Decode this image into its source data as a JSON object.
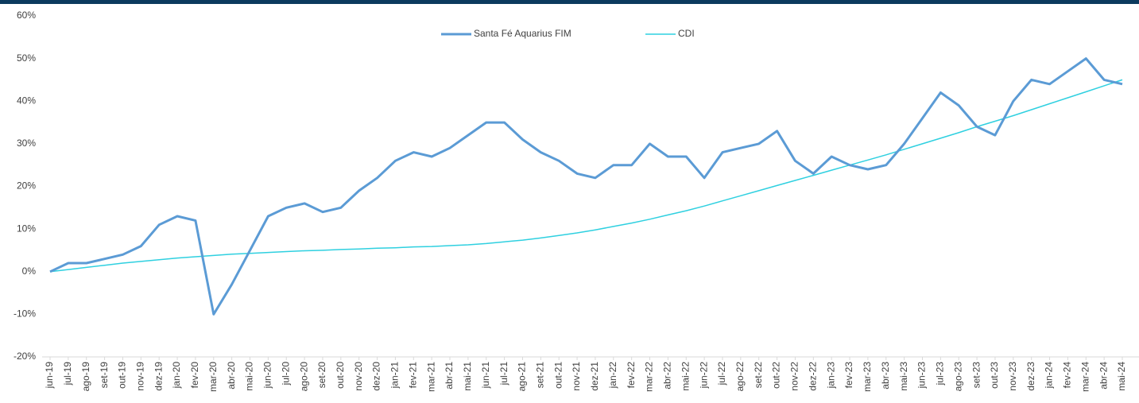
{
  "chart_data": {
    "type": "line",
    "categories": [
      "jun-19",
      "jul-19",
      "ago-19",
      "set-19",
      "out-19",
      "nov-19",
      "dez-19",
      "jan-20",
      "fev-20",
      "mar-20",
      "abr-20",
      "mai-20",
      "jun-20",
      "jul-20",
      "ago-20",
      "set-20",
      "out-20",
      "nov-20",
      "dez-20",
      "jan-21",
      "fev-21",
      "mar-21",
      "abr-21",
      "mai-21",
      "jun-21",
      "jul-21",
      "ago-21",
      "set-21",
      "out-21",
      "nov-21",
      "dez-21",
      "jan-22",
      "fev-22",
      "mar-22",
      "abr-22",
      "mai-22",
      "jun-22",
      "jul-22",
      "ago-22",
      "set-22",
      "out-22",
      "nov-22",
      "dez-22",
      "jan-23",
      "fev-23",
      "mar-23",
      "abr-23",
      "mai-23",
      "jun-23",
      "jul-23",
      "ago-23",
      "set-23",
      "out-23",
      "nov-23",
      "dez-23",
      "jan-24",
      "fev-24",
      "mar-24",
      "abr-24",
      "mai-24"
    ],
    "series": [
      {
        "name": "Santa Fé Aquarius FIM",
        "color": "#5b9bd5",
        "width": 3,
        "values": [
          0,
          2,
          2,
          3,
          4,
          6,
          11,
          13,
          12,
          -10,
          -3,
          5,
          13,
          15,
          16,
          14,
          15,
          19,
          22,
          26,
          28,
          27,
          29,
          32,
          35,
          35,
          31,
          28,
          26,
          23,
          22,
          25,
          25,
          30,
          27,
          27,
          22,
          28,
          29,
          30,
          33,
          26,
          23,
          27,
          25,
          24,
          25,
          30,
          36,
          42,
          39,
          34,
          32,
          40,
          45,
          44,
          47,
          50,
          45,
          44
        ]
      },
      {
        "name": "CDI",
        "color": "#2fd0e0",
        "width": 1.5,
        "values": [
          0,
          0.5,
          1,
          1.5,
          2,
          2.4,
          2.8,
          3.2,
          3.5,
          3.8,
          4.1,
          4.3,
          4.5,
          4.7,
          4.9,
          5.0,
          5.2,
          5.3,
          5.5,
          5.6,
          5.8,
          5.9,
          6.1,
          6.3,
          6.6,
          7.0,
          7.4,
          7.9,
          8.5,
          9.1,
          9.8,
          10.6,
          11.4,
          12.3,
          13.3,
          14.3,
          15.4,
          16.6,
          17.8,
          19.0,
          20.2,
          21.4,
          22.6,
          23.8,
          25.0,
          26.2,
          27.4,
          28.7,
          30.0,
          31.3,
          32.6,
          34.0,
          35.3,
          36.6,
          38.0,
          39.4,
          40.8,
          42.2,
          43.6,
          45.0
        ]
      }
    ],
    "ylim": [
      -20,
      60
    ],
    "yticks": [
      {
        "value": -20,
        "label": "-20%"
      },
      {
        "value": -10,
        "label": "-10%"
      },
      {
        "value": 0,
        "label": "0%"
      },
      {
        "value": 10,
        "label": "10%"
      },
      {
        "value": 20,
        "label": "20%"
      },
      {
        "value": 30,
        "label": "30%"
      },
      {
        "value": 40,
        "label": "40%"
      },
      {
        "value": 50,
        "label": "50%"
      },
      {
        "value": 60,
        "label": "60%"
      }
    ],
    "grid": false,
    "legend": "top"
  }
}
